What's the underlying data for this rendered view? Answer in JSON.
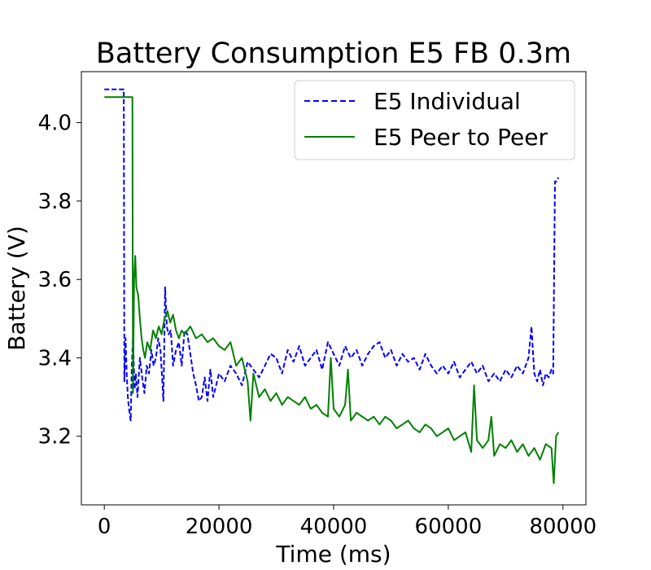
{
  "chart_data": {
    "type": "line",
    "title": "Battery Consumption E5 FB 0.3m",
    "xlabel": "Time (ms)",
    "ylabel": "Battery (V)",
    "xlim": [
      -4000,
      84000
    ],
    "ylim": [
      3.025,
      4.13
    ],
    "xticks": [
      0,
      20000,
      40000,
      60000,
      80000
    ],
    "xtick_labels": [
      "0",
      "20000",
      "40000",
      "60000",
      "80000"
    ],
    "yticks": [
      3.2,
      3.4,
      3.6,
      3.8,
      4.0
    ],
    "ytick_labels": [
      "3.2",
      "3.4",
      "3.6",
      "3.8",
      "4.0"
    ],
    "grid": false,
    "legend_position": "top-right",
    "series": [
      {
        "name": "E5 Individual",
        "color": "#0000ff",
        "style": "dashed",
        "x": [
          0,
          3400,
          3500,
          3700,
          3900,
          4100,
          4300,
          4600,
          4800,
          5000,
          5300,
          5500,
          5800,
          6200,
          6600,
          7000,
          7400,
          7800,
          8200,
          8600,
          9000,
          9400,
          9800,
          10300,
          10600,
          10900,
          11200,
          11600,
          12000,
          12500,
          13000,
          13500,
          14000,
          14500,
          15000,
          15500,
          16000,
          16500,
          17000,
          17500,
          18000,
          18500,
          19000,
          19500,
          20000,
          21000,
          22000,
          23000,
          24000,
          25000,
          26000,
          27000,
          28000,
          29000,
          30000,
          31000,
          32000,
          33000,
          34000,
          35000,
          36000,
          37000,
          38000,
          39000,
          40000,
          41000,
          42000,
          43000,
          44000,
          45000,
          46000,
          47000,
          48000,
          49000,
          50000,
          51000,
          52000,
          53000,
          54000,
          55000,
          56000,
          57000,
          58000,
          59000,
          60000,
          61000,
          62000,
          63000,
          64000,
          65000,
          66000,
          67000,
          68000,
          69000,
          70000,
          71000,
          72000,
          73000,
          74000,
          74500,
          75000,
          75500,
          76000,
          76500,
          77000,
          77500,
          78000,
          78300,
          78600,
          78900,
          79200
        ],
        "y": [
          4.085,
          4.085,
          3.34,
          3.45,
          3.36,
          3.3,
          3.27,
          3.24,
          3.38,
          3.45,
          3.32,
          3.36,
          3.3,
          3.4,
          3.35,
          3.31,
          3.38,
          3.36,
          3.42,
          3.38,
          3.4,
          3.45,
          3.42,
          3.29,
          3.58,
          3.48,
          3.46,
          3.47,
          3.38,
          3.42,
          3.44,
          3.38,
          3.47,
          3.46,
          3.41,
          3.36,
          3.33,
          3.29,
          3.3,
          3.35,
          3.29,
          3.37,
          3.3,
          3.33,
          3.36,
          3.34,
          3.38,
          3.36,
          3.33,
          3.39,
          3.37,
          3.35,
          3.38,
          3.41,
          3.4,
          3.36,
          3.42,
          3.39,
          3.43,
          3.38,
          3.4,
          3.42,
          3.37,
          3.44,
          3.41,
          3.38,
          3.43,
          3.4,
          3.42,
          3.38,
          3.41,
          3.43,
          3.44,
          3.4,
          3.42,
          3.38,
          3.41,
          3.39,
          3.4,
          3.37,
          3.41,
          3.38,
          3.36,
          3.38,
          3.36,
          3.39,
          3.35,
          3.37,
          3.39,
          3.36,
          3.38,
          3.34,
          3.36,
          3.34,
          3.37,
          3.35,
          3.38,
          3.36,
          3.4,
          3.48,
          3.36,
          3.34,
          3.37,
          3.33,
          3.36,
          3.35,
          3.37,
          3.36,
          3.85,
          3.85,
          3.86
        ]
      },
      {
        "name": "E5 Peer to Peer",
        "color": "#008000",
        "style": "solid",
        "x": [
          0,
          4900,
          5000,
          5200,
          5400,
          5600,
          5900,
          6200,
          6500,
          6800,
          7100,
          7500,
          8000,
          8500,
          9000,
          9500,
          10000,
          10500,
          11000,
          11500,
          12000,
          12500,
          13000,
          13500,
          14000,
          15000,
          16000,
          17000,
          18000,
          19000,
          20000,
          21000,
          22000,
          23000,
          24000,
          25000,
          25500,
          26000,
          27000,
          28000,
          29000,
          30000,
          31000,
          32000,
          33000,
          34000,
          35000,
          36000,
          37000,
          38000,
          39000,
          39500,
          40000,
          41000,
          42000,
          42500,
          43000,
          44000,
          45000,
          46000,
          47000,
          48000,
          49000,
          50000,
          51000,
          52000,
          53000,
          54000,
          55000,
          56000,
          57000,
          58000,
          59000,
          60000,
          61000,
          62000,
          63000,
          64000,
          64500,
          65000,
          65500,
          66000,
          67000,
          67500,
          68000,
          69000,
          70000,
          71000,
          72000,
          73000,
          74000,
          75000,
          76000,
          77000,
          78000,
          78400,
          78800,
          79200
        ],
        "y": [
          4.065,
          4.065,
          3.31,
          3.6,
          3.66,
          3.58,
          3.56,
          3.5,
          3.45,
          3.42,
          3.4,
          3.44,
          3.42,
          3.47,
          3.45,
          3.48,
          3.46,
          3.5,
          3.52,
          3.49,
          3.51,
          3.47,
          3.45,
          3.47,
          3.46,
          3.48,
          3.45,
          3.46,
          3.44,
          3.45,
          3.43,
          3.42,
          3.44,
          3.38,
          3.4,
          3.34,
          3.24,
          3.36,
          3.3,
          3.32,
          3.29,
          3.31,
          3.28,
          3.3,
          3.29,
          3.28,
          3.3,
          3.27,
          3.28,
          3.26,
          3.25,
          3.4,
          3.27,
          3.25,
          3.28,
          3.37,
          3.24,
          3.26,
          3.25,
          3.24,
          3.25,
          3.23,
          3.25,
          3.24,
          3.22,
          3.23,
          3.24,
          3.22,
          3.21,
          3.23,
          3.22,
          3.2,
          3.21,
          3.22,
          3.19,
          3.2,
          3.21,
          3.16,
          3.33,
          3.19,
          3.18,
          3.17,
          3.19,
          3.25,
          3.15,
          3.18,
          3.17,
          3.19,
          3.16,
          3.18,
          3.15,
          3.17,
          3.14,
          3.18,
          3.17,
          3.08,
          3.2,
          3.21
        ]
      }
    ]
  }
}
